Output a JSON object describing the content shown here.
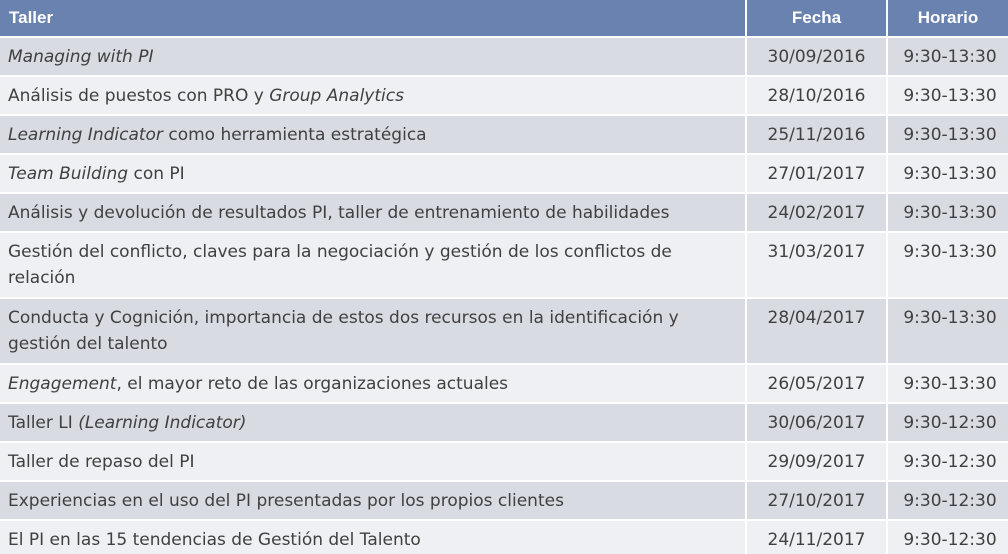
{
  "header": {
    "taller": "Taller",
    "fecha": "Fecha",
    "horario": "Horario"
  },
  "rows": [
    {
      "parts": [
        {
          "text": "Managing with PI",
          "italic": true
        }
      ],
      "fecha": "30/09/2016",
      "horario": "9:30-13:30"
    },
    {
      "parts": [
        {
          "text": "Análisis de puestos con PRO y ",
          "italic": false
        },
        {
          "text": "Group Analytics",
          "italic": true
        }
      ],
      "fecha": "28/10/2016",
      "horario": "9:30-13:30"
    },
    {
      "parts": [
        {
          "text": "Learning Indicator",
          "italic": true
        },
        {
          "text": " como herramienta estratégica",
          "italic": false
        }
      ],
      "fecha": "25/11/2016",
      "horario": "9:30-13:30"
    },
    {
      "parts": [
        {
          "text": "Team Building",
          "italic": true
        },
        {
          "text": " con PI",
          "italic": false
        }
      ],
      "fecha": "27/01/2017",
      "horario": "9:30-13:30"
    },
    {
      "parts": [
        {
          "text": "Análisis y devolución de resultados PI, taller de entrenamiento de habilidades",
          "italic": false
        }
      ],
      "fecha": "24/02/2017",
      "horario": "9:30-13:30"
    },
    {
      "parts": [
        {
          "text": "Gestión del conflicto, claves para la negociación y gestión de los conflictos de relación",
          "italic": false
        }
      ],
      "fecha": "31/03/2017",
      "horario": "9:30-13:30"
    },
    {
      "parts": [
        {
          "text": "Conducta y Cognición, importancia de estos dos recursos en la identificación y gestión del talento",
          "italic": false
        }
      ],
      "fecha": "28/04/2017",
      "horario": "9:30-13:30"
    },
    {
      "parts": [
        {
          "text": "Engagement",
          "italic": true
        },
        {
          "text": ", el mayor reto de las organizaciones actuales",
          "italic": false
        }
      ],
      "fecha": "26/05/2017",
      "horario": "9:30-13:30"
    },
    {
      "parts": [
        {
          "text": "Taller LI ",
          "italic": false
        },
        {
          "text": "(Learning Indicator)",
          "italic": true
        }
      ],
      "fecha": "30/06/2017",
      "horario": "9:30-12:30"
    },
    {
      "parts": [
        {
          "text": "Taller de repaso del PI",
          "italic": false
        }
      ],
      "fecha": "29/09/2017",
      "horario": "9:30-12:30"
    },
    {
      "parts": [
        {
          "text": "Experiencias en el uso del PI presentadas por los propios clientes",
          "italic": false
        }
      ],
      "fecha": "27/10/2017",
      "horario": "9:30-12:30"
    },
    {
      "parts": [
        {
          "text": "El PI en las 15 tendencias de Gestión del Talento",
          "italic": false
        }
      ],
      "fecha": "24/11/2017",
      "horario": "9:30-12:30"
    }
  ],
  "colors": {
    "header_bg": "#6a82b0",
    "row_even": "#d9dbe2",
    "row_odd": "#eef0f3",
    "text": "#404040"
  }
}
